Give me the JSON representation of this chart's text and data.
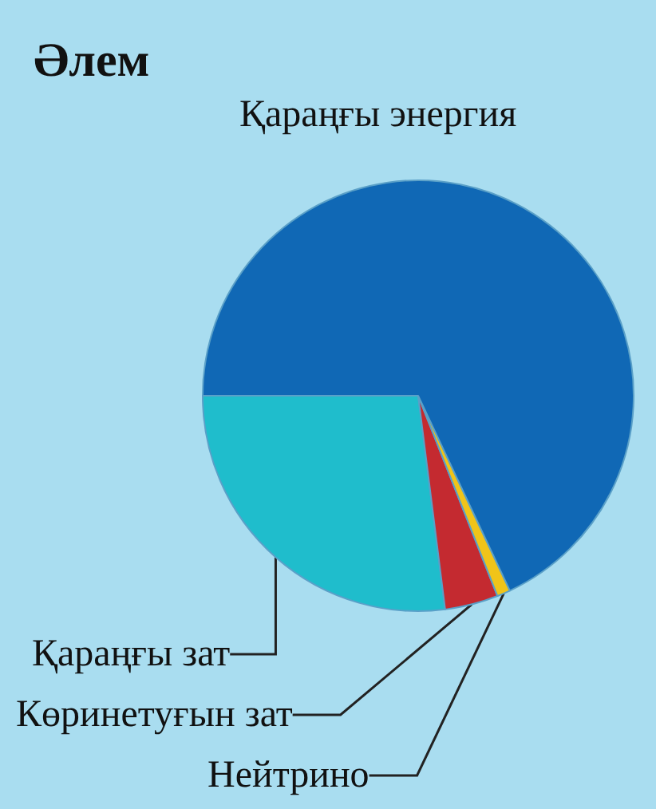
{
  "chart_data": {
    "type": "pie",
    "title": "Әлем",
    "categories": [
      "Қараңғы зат",
      "Көринетуғын зат",
      "Нейтрино",
      "Қараңғы энергия"
    ],
    "values": [
      27,
      4,
      1,
      68
    ],
    "colors": [
      "#1fbdcc",
      "#c42a30",
      "#f0c419",
      "#1068b5"
    ],
    "legend": false
  }
}
